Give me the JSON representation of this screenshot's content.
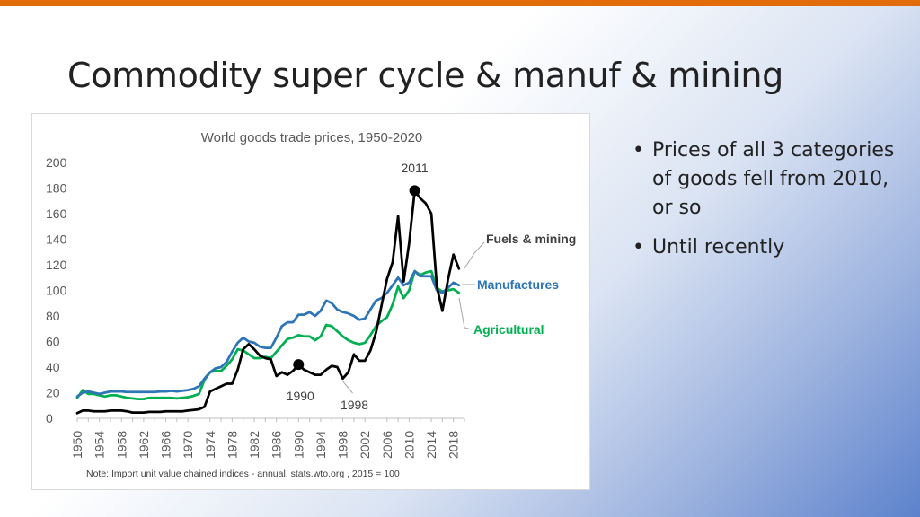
{
  "slide": {
    "title": "Commodity super cycle & manuf & mining",
    "accent_color": "#e36c0a",
    "bullets": [
      "Prices of all 3 categories of goods fell from 2010, or so",
      "Until recently"
    ]
  },
  "chart_data": {
    "type": "line",
    "title": "World goods trade prices, 1950-2020",
    "note": "Note: Import unit value chained indices - annual, stats.wto.org , 2015 = 100",
    "xlim": [
      1950,
      2020
    ],
    "ylim": [
      0,
      200
    ],
    "yticks": [
      0,
      20,
      40,
      60,
      80,
      100,
      120,
      140,
      160,
      180,
      200
    ],
    "xticks": [
      1950,
      1954,
      1958,
      1962,
      1966,
      1970,
      1974,
      1978,
      1982,
      1986,
      1990,
      1994,
      1998,
      2002,
      2006,
      2010,
      2014,
      2018
    ],
    "grid": false,
    "legend": "inline labels",
    "series": [
      {
        "name": "Fuels & mining",
        "color": "#000000",
        "label_color": "#404040",
        "x": [
          1950,
          1951,
          1952,
          1953,
          1954,
          1955,
          1956,
          1957,
          1958,
          1959,
          1960,
          1961,
          1962,
          1963,
          1964,
          1965,
          1966,
          1967,
          1968,
          1969,
          1970,
          1971,
          1972,
          1973,
          1974,
          1975,
          1976,
          1977,
          1978,
          1979,
          1980,
          1981,
          1982,
          1983,
          1984,
          1985,
          1986,
          1987,
          1988,
          1989,
          1990,
          1991,
          1992,
          1993,
          1994,
          1995,
          1996,
          1997,
          1998,
          1999,
          2000,
          2001,
          2002,
          2003,
          2004,
          2005,
          2006,
          2007,
          2008,
          2009,
          2010,
          2011,
          2012,
          2013,
          2014,
          2015,
          2016,
          2017,
          2018,
          2019
        ],
        "y": [
          4,
          6,
          6,
          5.5,
          5.5,
          5.5,
          6,
          6,
          6,
          5.5,
          4.5,
          4.5,
          4.5,
          5,
          5,
          5,
          5.5,
          5.5,
          5.5,
          5.5,
          6,
          6.5,
          7,
          9,
          21,
          23,
          25,
          27,
          27,
          38,
          54,
          58,
          54,
          49,
          47,
          46,
          33,
          36,
          34,
          37,
          42,
          38,
          36,
          34,
          34,
          38,
          41,
          40,
          31,
          36,
          50,
          45,
          45,
          53,
          67,
          88,
          109,
          122,
          158,
          107,
          137,
          178,
          172,
          168,
          160,
          103,
          84,
          108,
          128,
          117
        ]
      },
      {
        "name": "Manufactures",
        "color": "#2e75b6",
        "label_color": "#2e75b6",
        "x": [
          1950,
          1951,
          1952,
          1953,
          1954,
          1955,
          1956,
          1957,
          1958,
          1959,
          1960,
          1961,
          1962,
          1963,
          1964,
          1965,
          1966,
          1967,
          1968,
          1969,
          1970,
          1971,
          1972,
          1973,
          1974,
          1975,
          1976,
          1977,
          1978,
          1979,
          1980,
          1981,
          1982,
          1983,
          1984,
          1985,
          1986,
          1987,
          1988,
          1989,
          1990,
          1991,
          1992,
          1993,
          1994,
          1995,
          1996,
          1997,
          1998,
          1999,
          2000,
          2001,
          2002,
          2003,
          2004,
          2005,
          2006,
          2007,
          2008,
          2009,
          2010,
          2011,
          2012,
          2013,
          2014,
          2015,
          2016,
          2017,
          2018,
          2019
        ],
        "y": [
          17,
          20,
          21,
          20,
          19,
          20,
          21,
          21,
          21,
          20.5,
          20.5,
          20.5,
          20.5,
          20.5,
          20.5,
          21,
          21,
          21.5,
          21,
          21.5,
          22,
          23,
          25,
          31,
          36,
          39,
          40,
          44,
          52,
          59,
          63,
          60,
          59,
          56,
          55,
          55,
          63,
          72,
          75,
          75,
          81,
          81,
          83,
          80,
          84,
          92,
          90,
          85,
          83,
          82,
          80,
          77,
          78,
          85,
          92,
          94,
          98,
          104,
          110,
          104,
          106,
          115,
          111,
          111,
          111,
          100,
          98,
          102,
          106,
          104
        ]
      },
      {
        "name": "Agricultural",
        "color": "#00b050",
        "label_color": "#00b050",
        "x": [
          1950,
          1951,
          1952,
          1953,
          1954,
          1955,
          1956,
          1957,
          1958,
          1959,
          1960,
          1961,
          1962,
          1963,
          1964,
          1965,
          1966,
          1967,
          1968,
          1969,
          1970,
          1971,
          1972,
          1973,
          1974,
          1975,
          1976,
          1977,
          1978,
          1979,
          1980,
          1981,
          1982,
          1983,
          1984,
          1985,
          1986,
          1987,
          1988,
          1989,
          1990,
          1991,
          1992,
          1993,
          1994,
          1995,
          1996,
          1997,
          1998,
          1999,
          2000,
          2001,
          2002,
          2003,
          2004,
          2005,
          2006,
          2007,
          2008,
          2009,
          2010,
          2011,
          2012,
          2013,
          2014,
          2015,
          2016,
          2017,
          2018,
          2019
        ],
        "y": [
          16,
          22,
          19,
          19,
          18,
          17,
          18,
          18,
          17,
          16,
          15.5,
          15,
          15,
          16,
          16,
          16,
          16,
          16,
          15.5,
          16,
          16.5,
          17.5,
          19,
          30,
          36,
          37,
          37,
          41,
          46,
          54,
          53,
          50,
          47,
          47,
          48,
          47,
          52,
          57,
          62,
          63,
          65,
          64,
          64,
          61,
          64,
          73,
          72,
          68,
          64,
          61,
          59,
          58,
          59,
          65,
          72,
          76,
          79,
          89,
          103,
          94,
          100,
          115,
          112,
          114,
          115,
          102,
          99,
          100,
          101,
          98
        ]
      }
    ],
    "annotations": [
      {
        "text": "2011",
        "x": 2011,
        "y": 178
      },
      {
        "text": "1990",
        "x": 1990,
        "y": 42
      },
      {
        "text": "1998",
        "x": 1998,
        "y": 31
      }
    ]
  }
}
